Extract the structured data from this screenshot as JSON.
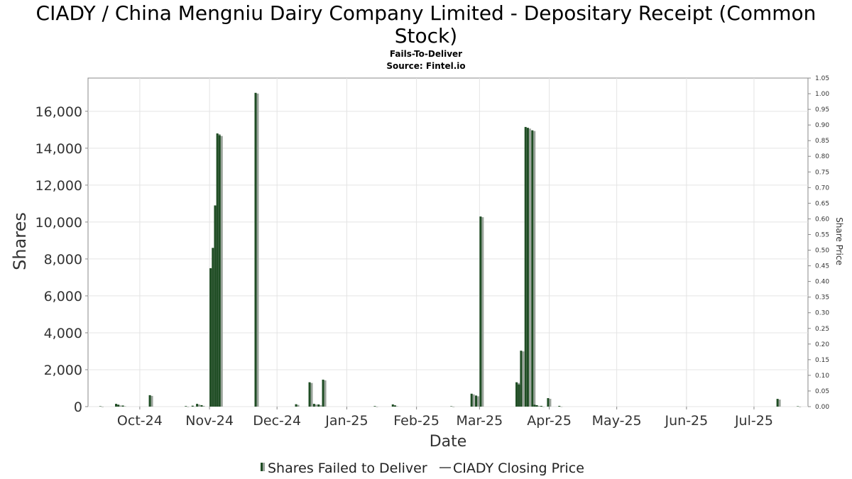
{
  "chart_data": {
    "type": "bar",
    "title": "CIADY / China Mengniu Dairy Company Limited - Depositary Receipt (Common Stock)",
    "subtitle": "Fails-To-Deliver",
    "source": "Source: Fintel.io",
    "xlabel": "Date",
    "ylabel": "Shares",
    "y2label": "Share Price",
    "ylim": [
      0,
      17800
    ],
    "y2lim": [
      0,
      1.05
    ],
    "xlim": [
      "2024-09-08",
      "2025-07-25"
    ],
    "yticks": [
      0,
      2000,
      4000,
      6000,
      8000,
      10000,
      12000,
      14000,
      16000
    ],
    "ytick_labels": [
      "0",
      "2,000",
      "4,000",
      "6,000",
      "8,000",
      "10,000",
      "12,000",
      "14,000",
      "16,000"
    ],
    "y2ticks": [
      0.0,
      0.05,
      0.1,
      0.15,
      0.2,
      0.25,
      0.3,
      0.35,
      0.4,
      0.45,
      0.5,
      0.55,
      0.6,
      0.65,
      0.7,
      0.75,
      0.8,
      0.85,
      0.9,
      0.95,
      1.0,
      1.05
    ],
    "y2tick_labels": [
      "0.00",
      "0.05",
      "0.10",
      "0.15",
      "0.20",
      "0.25",
      "0.30",
      "0.35",
      "0.40",
      "0.45",
      "0.50",
      "0.55",
      "0.60",
      "0.65",
      "0.70",
      "0.75",
      "0.80",
      "0.85",
      "0.90",
      "0.95",
      "1.00",
      "1.05"
    ],
    "xticks": [
      "2024-10-01",
      "2024-11-01",
      "2024-12-01",
      "2025-01-01",
      "2025-02-01",
      "2025-03-01",
      "2025-04-01",
      "2025-05-01",
      "2025-06-01",
      "2025-07-01"
    ],
    "xtick_labels": [
      "Oct-24",
      "Nov-24",
      "Dec-24",
      "Jan-25",
      "Feb-25",
      "Mar-25",
      "Apr-25",
      "May-25",
      "Jun-25",
      "Jul-25"
    ],
    "grid": true,
    "legend_position": "bottom-center",
    "series": [
      {
        "name": "Shares Failed to Deliver",
        "kind": "bar",
        "color": "#1f4d24",
        "x": [
          "2024-09-13",
          "2024-09-20",
          "2024-09-21",
          "2024-09-23",
          "2024-10-05",
          "2024-10-21",
          "2024-10-24",
          "2024-10-26",
          "2024-10-28",
          "2024-11-01",
          "2024-11-02",
          "2024-11-03",
          "2024-11-04",
          "2024-11-05",
          "2024-11-21",
          "2024-12-09",
          "2024-12-15",
          "2024-12-17",
          "2024-12-19",
          "2024-12-21",
          "2025-01-13",
          "2025-01-21",
          "2025-01-22",
          "2025-02-16",
          "2025-02-25",
          "2025-02-27",
          "2025-03-01",
          "2025-03-17",
          "2025-03-18",
          "2025-03-19",
          "2025-03-21",
          "2025-03-22",
          "2025-03-24",
          "2025-03-25",
          "2025-03-26",
          "2025-03-28",
          "2025-03-31",
          "2025-04-05",
          "2025-07-11",
          "2025-07-20"
        ],
        "values": [
          20,
          150,
          100,
          60,
          620,
          30,
          50,
          150,
          80,
          7500,
          8600,
          10900,
          14800,
          14700,
          17000,
          130,
          1320,
          150,
          120,
          1460,
          30,
          120,
          60,
          20,
          700,
          600,
          10300,
          1320,
          1200,
          3030,
          15150,
          15100,
          14970,
          100,
          80,
          40,
          460,
          40,
          420,
          20
        ]
      },
      {
        "name": "CIADY Closing Price",
        "kind": "line",
        "color": "#707070",
        "values": []
      }
    ]
  }
}
